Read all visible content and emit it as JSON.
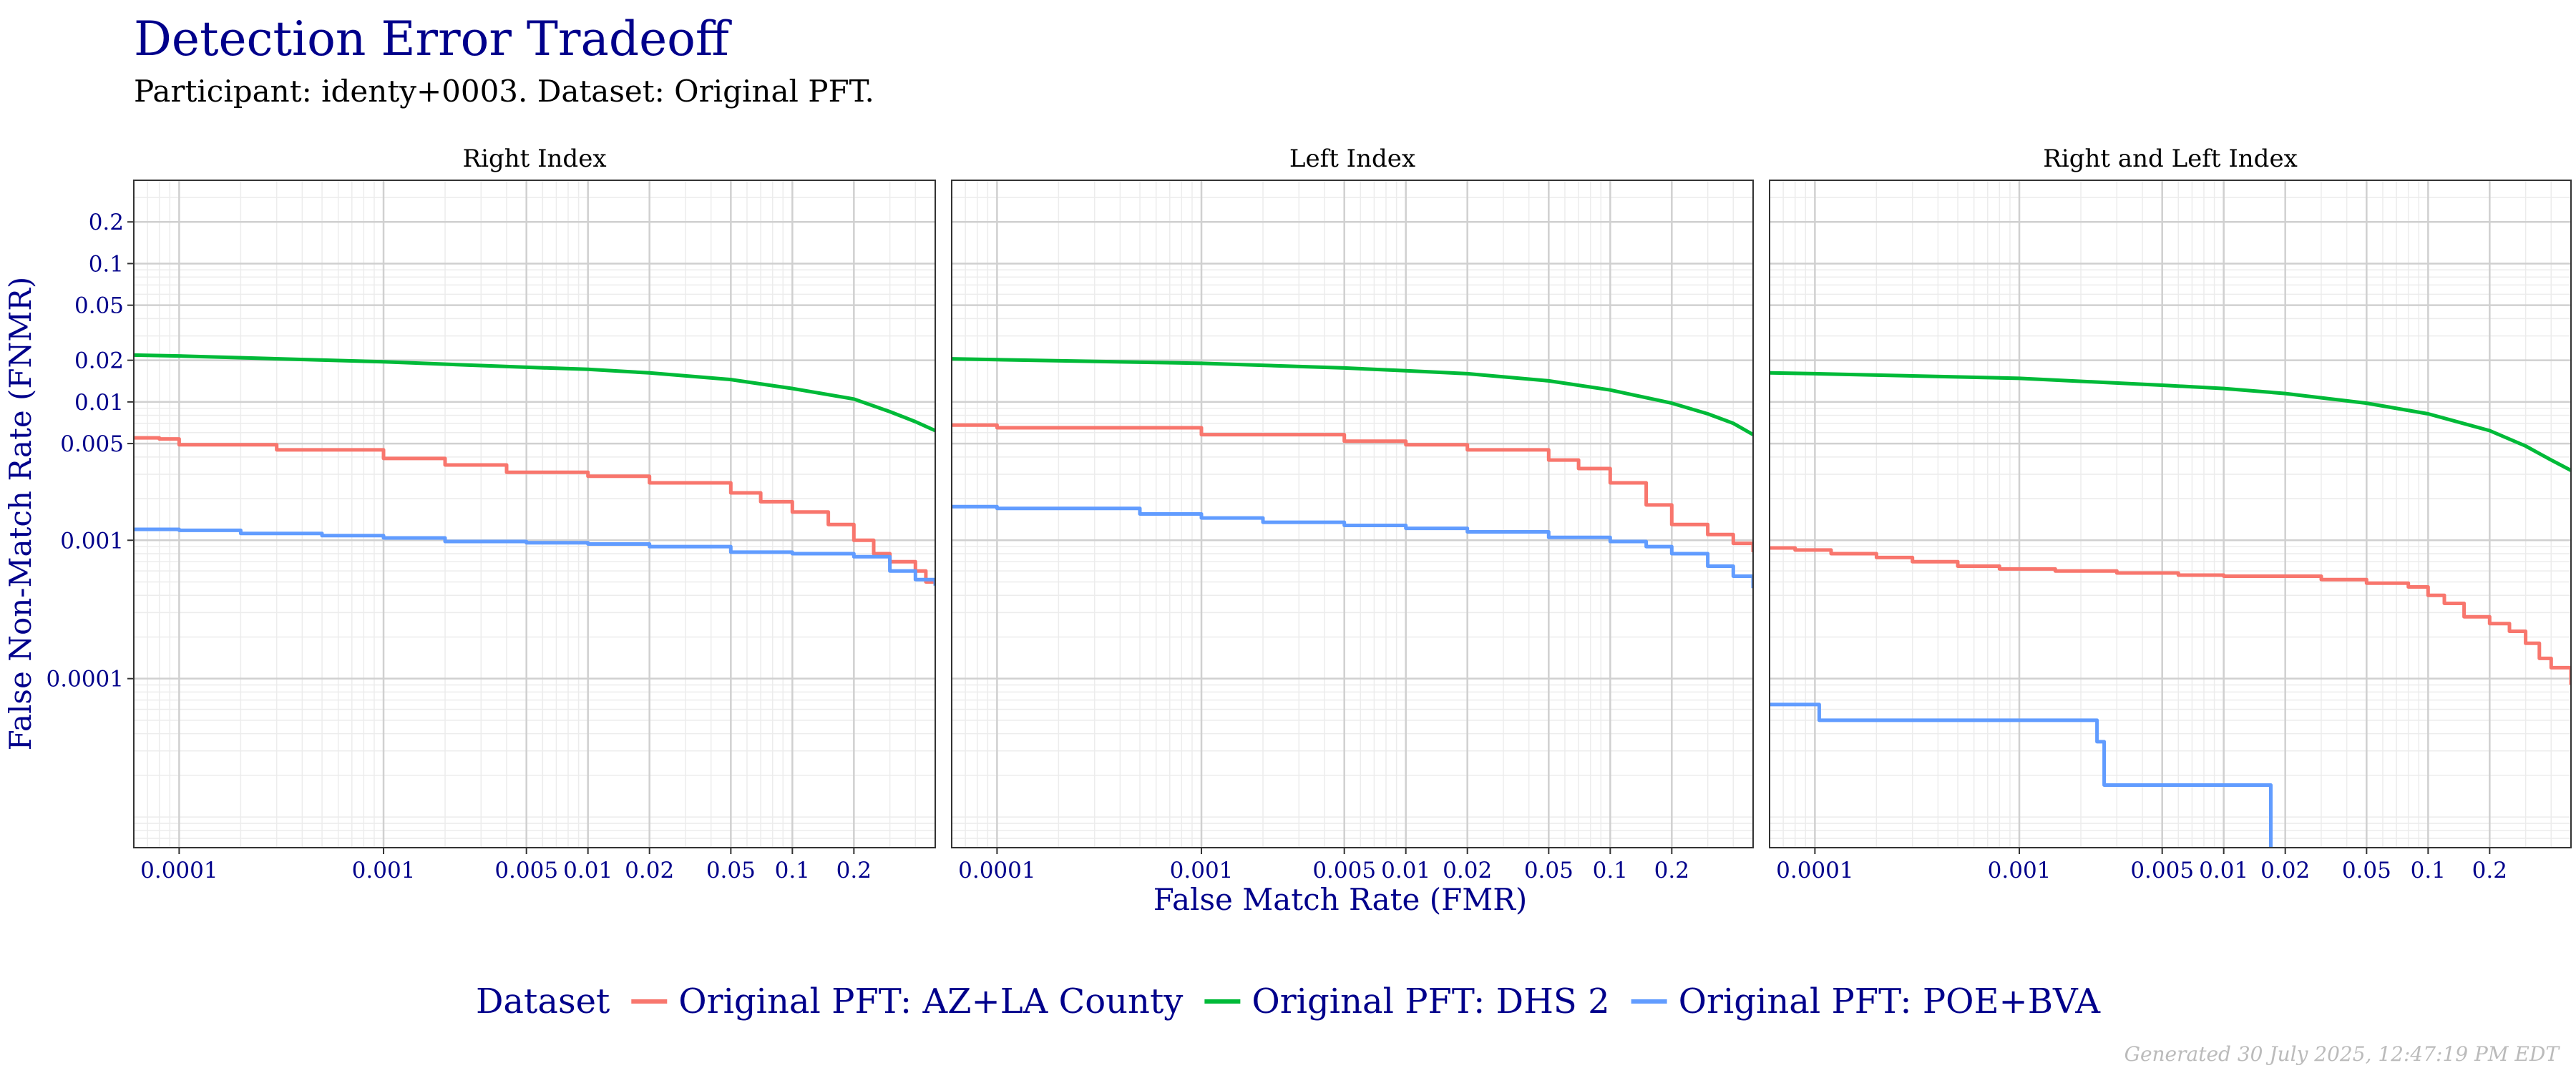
{
  "chart_data": {
    "type": "line",
    "title": "Detection Error Tradeoff",
    "subtitle": "Participant: identy+0003. Dataset: Original PFT.",
    "xlabel": "False Match Rate (FMR)",
    "ylabel": "False Non-Match Rate (FNMR)",
    "x_scale": "log",
    "y_scale": "log",
    "xlim": [
      6e-05,
      0.5
    ],
    "ylim": [
      6e-06,
      0.4
    ],
    "x_ticks": [
      {
        "value": 0.0001,
        "label": "0.0001"
      },
      {
        "value": 0.001,
        "label": "0.001"
      },
      {
        "value": 0.005,
        "label": "0.005"
      },
      {
        "value": 0.01,
        "label": "0.01"
      },
      {
        "value": 0.02,
        "label": "0.02"
      },
      {
        "value": 0.05,
        "label": "0.05"
      },
      {
        "value": 0.1,
        "label": "0.1"
      },
      {
        "value": 0.2,
        "label": "0.2"
      }
    ],
    "y_ticks": [
      {
        "value": 0.2,
        "label": "0.2"
      },
      {
        "value": 0.1,
        "label": "0.1"
      },
      {
        "value": 0.05,
        "label": "0.05"
      },
      {
        "value": 0.02,
        "label": "0.02"
      },
      {
        "value": 0.01,
        "label": "0.01"
      },
      {
        "value": 0.005,
        "label": "0.005"
      },
      {
        "value": 0.001,
        "label": "0.001"
      },
      {
        "value": 0.0001,
        "label": "0.0001"
      }
    ],
    "grid": true,
    "legend": {
      "title": "Dataset",
      "position": "bottom",
      "entries": [
        {
          "name": "Original PFT: AZ+LA County",
          "color": "#F8766D"
        },
        {
          "name": "Original PFT: DHS 2",
          "color": "#00BA38"
        },
        {
          "name": "Original PFT: POE+BVA",
          "color": "#619CFF"
        }
      ]
    },
    "panels": [
      {
        "title": "Right Index",
        "series": [
          {
            "name": "Original PFT: DHS 2",
            "color": "#00BA38",
            "step": false,
            "points": [
              [
                6e-05,
                0.0218
              ],
              [
                0.0001,
                0.0215
              ],
              [
                0.001,
                0.0195
              ],
              [
                0.005,
                0.0178
              ],
              [
                0.01,
                0.0172
              ],
              [
                0.02,
                0.0162
              ],
              [
                0.05,
                0.0145
              ],
              [
                0.1,
                0.0125
              ],
              [
                0.2,
                0.0105
              ],
              [
                0.3,
                0.0085
              ],
              [
                0.4,
                0.0072
              ],
              [
                0.5,
                0.0062
              ]
            ]
          },
          {
            "name": "Original PFT: AZ+LA County",
            "color": "#F8766D",
            "step": true,
            "points": [
              [
                6e-05,
                0.0055
              ],
              [
                8e-05,
                0.0054
              ],
              [
                0.0001,
                0.0049
              ],
              [
                0.0003,
                0.0045
              ],
              [
                0.001,
                0.0039
              ],
              [
                0.002,
                0.0035
              ],
              [
                0.004,
                0.0031
              ],
              [
                0.01,
                0.0029
              ],
              [
                0.02,
                0.0026
              ],
              [
                0.05,
                0.0022
              ],
              [
                0.07,
                0.0019
              ],
              [
                0.1,
                0.0016
              ],
              [
                0.15,
                0.0013
              ],
              [
                0.2,
                0.001
              ],
              [
                0.25,
                0.0008
              ],
              [
                0.3,
                0.0007
              ],
              [
                0.4,
                0.0006
              ],
              [
                0.45,
                0.0005
              ],
              [
                0.5,
                0.0005
              ]
            ]
          },
          {
            "name": "Original PFT: POE+BVA",
            "color": "#619CFF",
            "step": true,
            "points": [
              [
                6e-05,
                0.0012
              ],
              [
                0.0001,
                0.00118
              ],
              [
                0.0002,
                0.00112
              ],
              [
                0.0005,
                0.00108
              ],
              [
                0.001,
                0.00104
              ],
              [
                0.002,
                0.00098
              ],
              [
                0.005,
                0.00096
              ],
              [
                0.01,
                0.00094
              ],
              [
                0.02,
                0.0009
              ],
              [
                0.05,
                0.00082
              ],
              [
                0.1,
                0.0008
              ],
              [
                0.2,
                0.00076
              ],
              [
                0.3,
                0.0006
              ],
              [
                0.4,
                0.00052
              ],
              [
                0.5,
                0.00047
              ]
            ]
          }
        ]
      },
      {
        "title": "Left Index",
        "series": [
          {
            "name": "Original PFT: DHS 2",
            "color": "#00BA38",
            "step": false,
            "points": [
              [
                6e-05,
                0.0205
              ],
              [
                0.0001,
                0.0202
              ],
              [
                0.001,
                0.019
              ],
              [
                0.005,
                0.0176
              ],
              [
                0.01,
                0.0168
              ],
              [
                0.02,
                0.016
              ],
              [
                0.05,
                0.0142
              ],
              [
                0.1,
                0.0122
              ],
              [
                0.2,
                0.0098
              ],
              [
                0.3,
                0.0082
              ],
              [
                0.4,
                0.007
              ],
              [
                0.5,
                0.0058
              ]
            ]
          },
          {
            "name": "Original PFT: AZ+LA County",
            "color": "#F8766D",
            "step": true,
            "points": [
              [
                6e-05,
                0.0068
              ],
              [
                0.0001,
                0.0065
              ],
              [
                0.001,
                0.0058
              ],
              [
                0.005,
                0.0052
              ],
              [
                0.01,
                0.0049
              ],
              [
                0.02,
                0.0045
              ],
              [
                0.05,
                0.0038
              ],
              [
                0.07,
                0.0033
              ],
              [
                0.1,
                0.0026
              ],
              [
                0.15,
                0.0018
              ],
              [
                0.2,
                0.0013
              ],
              [
                0.3,
                0.0011
              ],
              [
                0.4,
                0.00095
              ],
              [
                0.5,
                0.00082
              ]
            ]
          },
          {
            "name": "Original PFT: POE+BVA",
            "color": "#619CFF",
            "step": true,
            "points": [
              [
                6e-05,
                0.00175
              ],
              [
                0.0001,
                0.0017
              ],
              [
                0.0005,
                0.00155
              ],
              [
                0.001,
                0.00145
              ],
              [
                0.002,
                0.00135
              ],
              [
                0.005,
                0.00128
              ],
              [
                0.01,
                0.00122
              ],
              [
                0.02,
                0.00115
              ],
              [
                0.05,
                0.00105
              ],
              [
                0.1,
                0.00098
              ],
              [
                0.15,
                0.0009
              ],
              [
                0.2,
                0.0008
              ],
              [
                0.3,
                0.00065
              ],
              [
                0.4,
                0.00055
              ],
              [
                0.5,
                0.00045
              ]
            ]
          }
        ]
      },
      {
        "title": "Right and Left Index",
        "series": [
          {
            "name": "Original PFT: DHS 2",
            "color": "#00BA38",
            "step": false,
            "points": [
              [
                6e-05,
                0.0162
              ],
              [
                0.0001,
                0.016
              ],
              [
                0.001,
                0.0148
              ],
              [
                0.005,
                0.0132
              ],
              [
                0.01,
                0.0125
              ],
              [
                0.02,
                0.0115
              ],
              [
                0.05,
                0.0098
              ],
              [
                0.1,
                0.0082
              ],
              [
                0.2,
                0.0062
              ],
              [
                0.3,
                0.0048
              ],
              [
                0.4,
                0.0038
              ],
              [
                0.5,
                0.0032
              ]
            ]
          },
          {
            "name": "Original PFT: AZ+LA County",
            "color": "#F8766D",
            "step": true,
            "points": [
              [
                6e-05,
                0.00088
              ],
              [
                8e-05,
                0.00085
              ],
              [
                0.00012,
                0.0008
              ],
              [
                0.0002,
                0.00075
              ],
              [
                0.0003,
                0.0007
              ],
              [
                0.0005,
                0.00065
              ],
              [
                0.0008,
                0.00062
              ],
              [
                0.0015,
                0.0006
              ],
              [
                0.003,
                0.00058
              ],
              [
                0.006,
                0.00056
              ],
              [
                0.01,
                0.00055
              ],
              [
                0.03,
                0.00052
              ],
              [
                0.05,
                0.00049
              ],
              [
                0.08,
                0.00046
              ],
              [
                0.1,
                0.0004
              ],
              [
                0.12,
                0.00035
              ],
              [
                0.15,
                0.00028
              ],
              [
                0.2,
                0.00025
              ],
              [
                0.25,
                0.00022
              ],
              [
                0.3,
                0.00018
              ],
              [
                0.35,
                0.00014
              ],
              [
                0.4,
                0.00012
              ],
              [
                0.5,
                9e-05
              ]
            ]
          },
          {
            "name": "Original PFT: POE+BVA",
            "color": "#619CFF",
            "step": true,
            "points": [
              [
                6e-05,
                6.5e-05
              ],
              [
                0.0001,
                6.5e-05
              ],
              [
                0.000105,
                5e-05
              ],
              [
                0.0024,
                5e-05
              ],
              [
                0.0024,
                3.5e-05
              ],
              [
                0.0026,
                3.5e-05
              ],
              [
                0.0026,
                1.7e-05
              ],
              [
                0.017,
                1.7e-05
              ],
              [
                0.017,
                6e-06
              ]
            ]
          }
        ]
      }
    ]
  },
  "footer": "Generated 30 July 2025, 12:47:19 PM EDT"
}
